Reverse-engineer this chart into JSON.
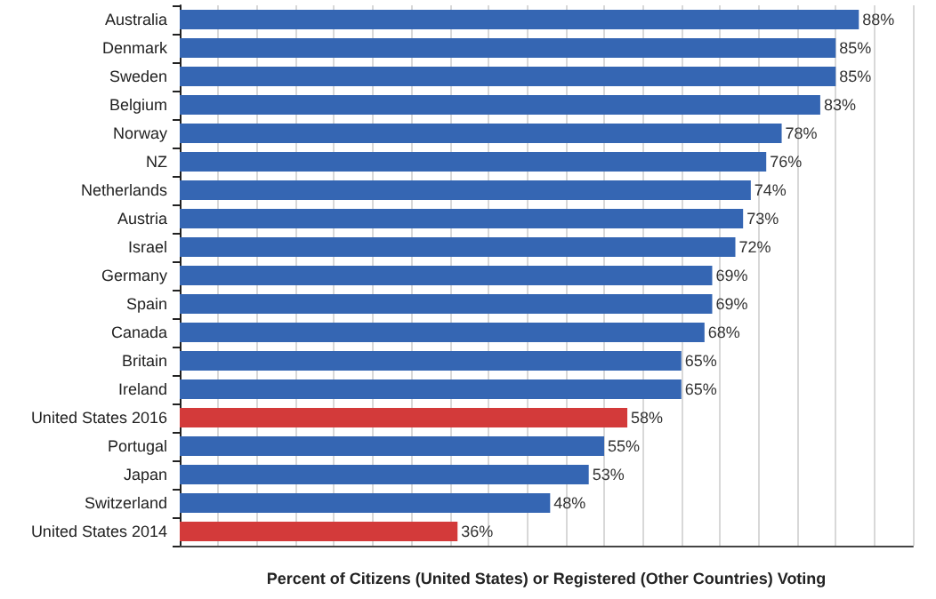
{
  "chart_data": {
    "type": "bar",
    "orientation": "horizontal",
    "xlabel": "Percent of Citizens (United States) or Registered (Other Countries) Voting",
    "categories": [
      "Australia",
      "Denmark",
      "Sweden",
      "Belgium",
      "Norway",
      "NZ",
      "Netherlands",
      "Austria",
      "Israel",
      "Germany",
      "Spain",
      "Canada",
      "Britain",
      "Ireland",
      "United States 2016",
      "Portugal",
      "Japan",
      "Switzerland",
      "United States 2014"
    ],
    "values": [
      88,
      85,
      85,
      83,
      78,
      76,
      74,
      73,
      72,
      69,
      69,
      68,
      65,
      65,
      58,
      55,
      53,
      48,
      36
    ],
    "value_labels": [
      "88%",
      "85%",
      "85%",
      "83%",
      "78%",
      "76%",
      "74%",
      "73%",
      "72%",
      "69%",
      "69%",
      "68%",
      "65%",
      "65%",
      "58%",
      "55%",
      "53%",
      "48%",
      "36%"
    ],
    "colors": [
      "#3566b3",
      "#3566b3",
      "#3566b3",
      "#3566b3",
      "#3566b3",
      "#3566b3",
      "#3566b3",
      "#3566b3",
      "#3566b3",
      "#3566b3",
      "#3566b3",
      "#3566b3",
      "#3566b3",
      "#3566b3",
      "#d33a3a",
      "#3566b3",
      "#3566b3",
      "#3566b3",
      "#d33a3a"
    ],
    "xlim": [
      0,
      95
    ],
    "xticks": [
      {
        "value": 0,
        "label": null
      },
      {
        "value": 5,
        "label": null
      },
      {
        "value": 10,
        "label": null
      },
      {
        "value": 15,
        "label": null
      },
      {
        "value": 20,
        "label": null
      },
      {
        "value": 25,
        "label": null
      },
      {
        "value": 30,
        "label": null
      },
      {
        "value": 35,
        "label": null
      },
      {
        "value": 40,
        "label": null
      },
      {
        "value": 45,
        "label": null
      },
      {
        "value": 50,
        "label": null
      },
      {
        "value": 55,
        "label": null
      },
      {
        "value": 60,
        "label": null
      },
      {
        "value": 65,
        "label": null
      },
      {
        "value": 70,
        "label": null
      },
      {
        "value": 75,
        "label": null
      },
      {
        "value": 80,
        "label": null
      },
      {
        "value": 85,
        "label": null
      },
      {
        "value": 90,
        "label": null
      },
      {
        "value": 95,
        "label": null
      }
    ],
    "grid": "x",
    "tick_labels": "y"
  }
}
